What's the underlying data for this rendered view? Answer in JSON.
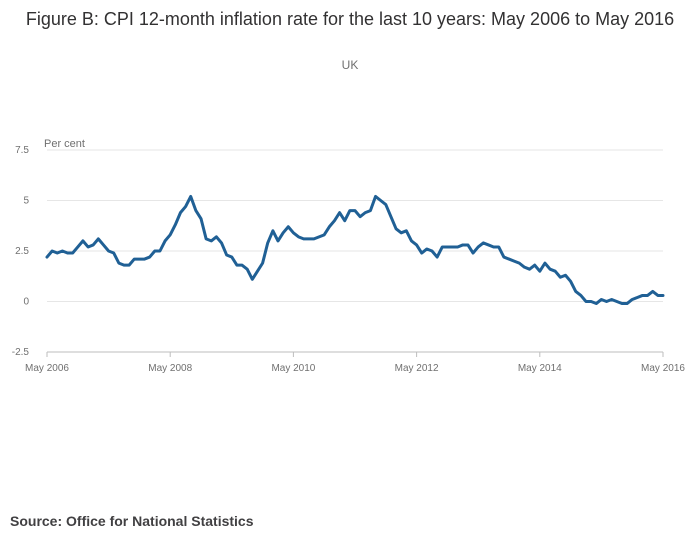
{
  "title": "Figure B: CPI 12-month inflation rate for the last 10 years: May 2006 to May 2016",
  "subtitle": "UK",
  "source": "Source: Office for National Statistics",
  "colors": {
    "line": "#206095",
    "grid": "#e6e6e6",
    "text": "#707070"
  },
  "chart_data": {
    "type": "line",
    "title": "Figure B: CPI 12-month inflation rate for the last 10 years: May 2006 to May 2016",
    "subtitle": "UK",
    "xlabel": "",
    "ylabel": "Per cent",
    "ylim": [
      -2.5,
      7.5
    ],
    "yticks": [
      "7.5",
      "5",
      "2.5",
      "0",
      "-2.5"
    ],
    "ytick_values": [
      7.5,
      5,
      2.5,
      0,
      -2.5
    ],
    "xticks": [
      "May 2006",
      "May 2008",
      "May 2010",
      "May 2012",
      "May 2014",
      "May 2016"
    ],
    "xtick_index": [
      0,
      24,
      48,
      72,
      96,
      120
    ],
    "series": [
      {
        "name": "CPI 12-month rate",
        "start": "May 2006",
        "values": [
          2.2,
          2.5,
          2.4,
          2.5,
          2.4,
          2.4,
          2.7,
          3.0,
          2.7,
          2.8,
          3.1,
          2.8,
          2.5,
          2.4,
          1.9,
          1.8,
          1.8,
          2.1,
          2.1,
          2.1,
          2.2,
          2.5,
          2.5,
          3.0,
          3.3,
          3.8,
          4.4,
          4.7,
          5.2,
          4.5,
          4.1,
          3.1,
          3.0,
          3.2,
          2.9,
          2.3,
          2.2,
          1.8,
          1.8,
          1.6,
          1.1,
          1.5,
          1.9,
          2.9,
          3.5,
          3.0,
          3.4,
          3.7,
          3.4,
          3.2,
          3.1,
          3.1,
          3.1,
          3.2,
          3.3,
          3.7,
          4.0,
          4.4,
          4.0,
          4.5,
          4.5,
          4.2,
          4.4,
          4.5,
          5.2,
          5.0,
          4.8,
          4.2,
          3.6,
          3.4,
          3.5,
          3.0,
          2.8,
          2.4,
          2.6,
          2.5,
          2.2,
          2.7,
          2.7,
          2.7,
          2.7,
          2.8,
          2.8,
          2.4,
          2.7,
          2.9,
          2.8,
          2.7,
          2.7,
          2.2,
          2.1,
          2.0,
          1.9,
          1.7,
          1.6,
          1.8,
          1.5,
          1.9,
          1.6,
          1.5,
          1.2,
          1.3,
          1.0,
          0.5,
          0.3,
          0.0,
          0.0,
          -0.1,
          0.1,
          0.0,
          0.1,
          0.0,
          -0.1,
          -0.1,
          0.1,
          0.2,
          0.3,
          0.3,
          0.5,
          0.3,
          0.3
        ]
      }
    ]
  }
}
